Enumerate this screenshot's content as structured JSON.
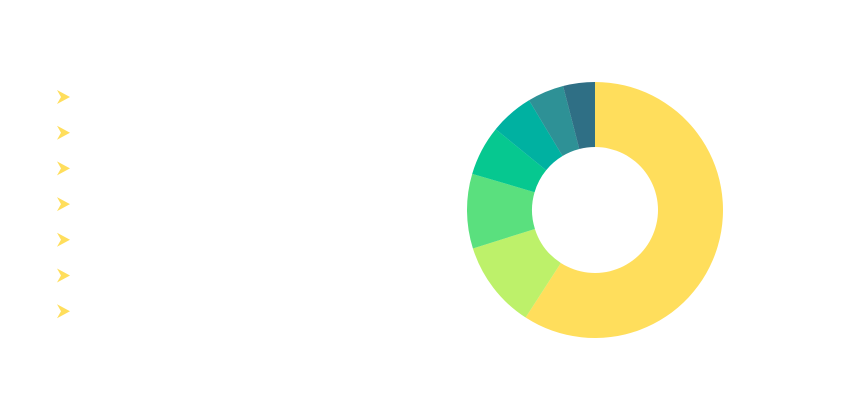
{
  "chart_data": {
    "type": "pie",
    "categories": [
      null,
      null,
      null,
      null,
      null,
      null,
      null
    ],
    "values": [
      59,
      11,
      9.4,
      6.3,
      5.5,
      4.6,
      4
    ],
    "colors": [
      "#ffde5c",
      "#bdf16a",
      "#5ae07e",
      "#06c890",
      "#00b1a1",
      "#2e9196",
      "#2f6f85"
    ],
    "legend_icon_color": "#ffde5c",
    "legend": "left"
  }
}
